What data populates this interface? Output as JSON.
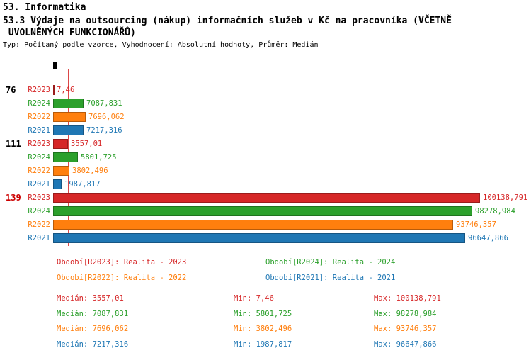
{
  "header": {
    "title_prefix": "53.",
    "title_rest": " Informatika",
    "subtitle_line1": "53.3 Výdaje na outsourcing (nákup) informačních služeb v Kč na pracovníka (VČETNĚ",
    "subtitle_line2": " UVOLNĚNÝCH FUNKCIONÁŘŮ)",
    "meta": "Typ: Počítaný podle vzorce, Vyhodnocení: Absolutní hodnoty, Průměr: Medián"
  },
  "chart_data": {
    "type": "bar",
    "orientation": "horizontal",
    "title": "53.3 Výdaje na outsourcing (nákup) informačních služeb v Kč na pracovníka (VČETNĚ UVOLNĚNÝCH FUNKCIONÁŘŮ)",
    "xlabel": "",
    "ylabel": "",
    "xlim": [
      0,
      100138.791
    ],
    "grid": false,
    "categories": [
      "76",
      "111",
      "139"
    ],
    "series": [
      {
        "name": "R2023",
        "color": "#d62728",
        "values": [
          7.46,
          3557.01,
          100138.791
        ]
      },
      {
        "name": "R2024",
        "color": "#2ca02c",
        "values": [
          7087.831,
          5801.725,
          98278.984
        ]
      },
      {
        "name": "R2022",
        "color": "#ff7f0e",
        "values": [
          7696.062,
          3802.496,
          93746.357
        ]
      },
      {
        "name": "R2021",
        "color": "#1f77b4",
        "values": [
          7217.316,
          1987.817,
          96647.866
        ]
      }
    ],
    "series_colors": {
      "R2023": "#d62728",
      "R2024": "#2ca02c",
      "R2022": "#ff7f0e",
      "R2021": "#1f77b4"
    },
    "xmax": 100138.791,
    "groups": [
      {
        "row": "76",
        "row_color": "#000000",
        "bars": [
          {
            "series": "R2023",
            "value": 7.46,
            "label": "7,46"
          },
          {
            "series": "R2024",
            "value": 7087.831,
            "label": "7087,831"
          },
          {
            "series": "R2022",
            "value": 7696.062,
            "label": "7696,062"
          },
          {
            "series": "R2021",
            "value": 7217.316,
            "label": "7217,316"
          }
        ]
      },
      {
        "row": "111",
        "row_color": "#000000",
        "bars": [
          {
            "series": "R2023",
            "value": 3557.01,
            "label": "3557,01"
          },
          {
            "series": "R2024",
            "value": 5801.725,
            "label": "5801,725"
          },
          {
            "series": "R2022",
            "value": 3802.496,
            "label": "3802,496"
          },
          {
            "series": "R2021",
            "value": 1987.817,
            "label": "1987,817"
          }
        ]
      },
      {
        "row": "139",
        "row_color": "#cc0000",
        "bars": [
          {
            "series": "R2023",
            "value": 100138.791,
            "label": "100138,791"
          },
          {
            "series": "R2024",
            "value": 98278.984,
            "label": "98278,984"
          },
          {
            "series": "R2022",
            "value": 93746.357,
            "label": "93746,357"
          },
          {
            "series": "R2021",
            "value": 96647.866,
            "label": "96647,866"
          }
        ]
      }
    ],
    "legend_position": "bottom",
    "legend": [
      {
        "series": "R2023",
        "text": "Období[R2023]: Realita - 2023",
        "col": 0,
        "row": 0
      },
      {
        "series": "R2024",
        "text": "Období[R2024]: Realita - 2024",
        "col": 1,
        "row": 0
      },
      {
        "series": "R2022",
        "text": "Období[R2022]: Realita - 2022",
        "col": 0,
        "row": 1
      },
      {
        "series": "R2021",
        "text": "Období[R2021]: Realita - 2021",
        "col": 1,
        "row": 1
      }
    ],
    "stats_labels": {
      "median": "Medián",
      "min": "Min",
      "max": "Max"
    },
    "stats": [
      {
        "series": "R2023",
        "median": "3557,01",
        "min": "7,46",
        "max": "100138,791"
      },
      {
        "series": "R2024",
        "median": "7087,831",
        "min": "5801,725",
        "max": "98278,984"
      },
      {
        "series": "R2022",
        "median": "7696,062",
        "min": "3802,496",
        "max": "93746,357"
      },
      {
        "series": "R2021",
        "median": "7217,316",
        "min": "1987,817",
        "max": "96647,866"
      }
    ]
  }
}
